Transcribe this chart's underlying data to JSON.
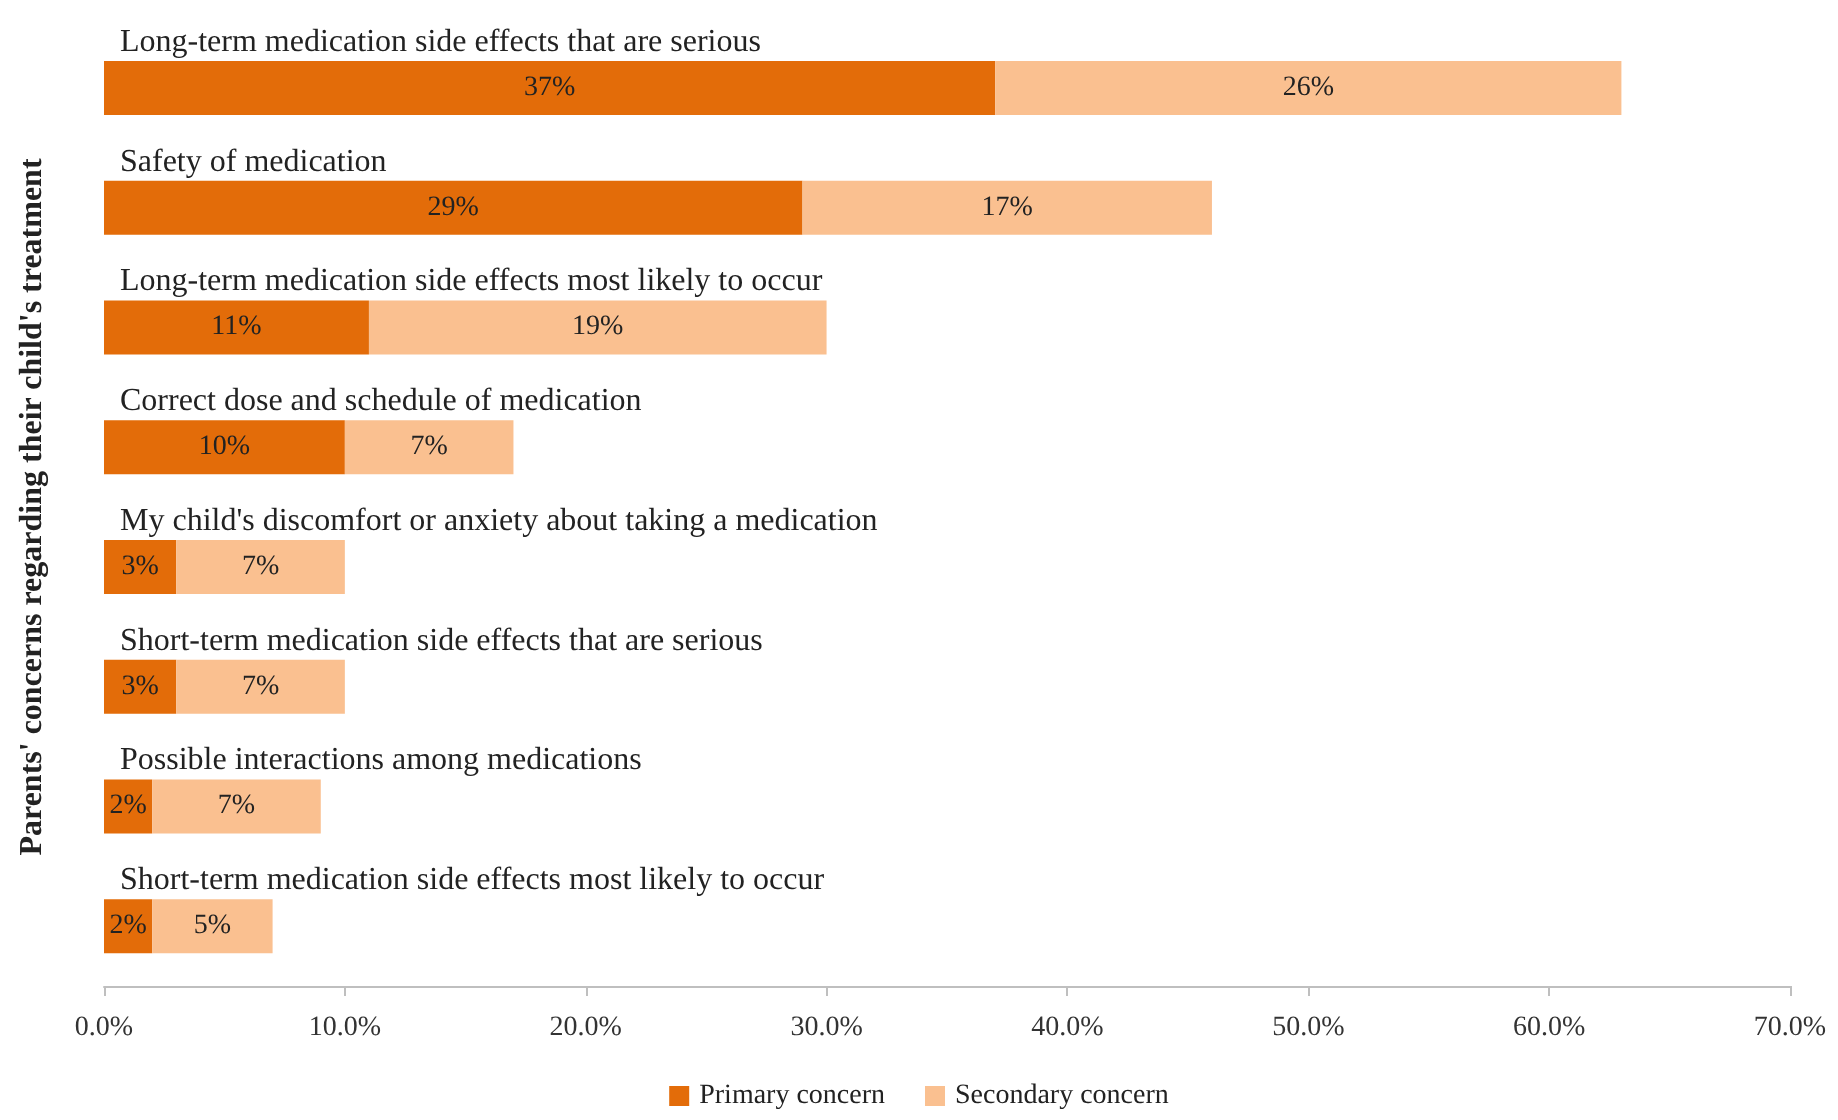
{
  "chart_data": {
    "type": "bar",
    "orientation": "horizontal",
    "stacked": true,
    "ylabel": "Parents' concerns regarding their child's treatment",
    "categories": [
      "Long-term medication side effects that are serious",
      "Safety of medication",
      "Long-term medication side effects most likely to occur",
      "Correct dose and schedule of medication",
      "My child's discomfort or anxiety about taking a medication",
      "Short-term medication side effects that are serious",
      "Possible interactions among medications",
      "Short-term medication side effects most likely to occur"
    ],
    "series": [
      {
        "name": "Primary concern",
        "color": "#e36c09",
        "values": [
          37,
          29,
          11,
          10,
          3,
          3,
          2,
          2
        ],
        "value_labels": [
          "37%",
          "29%",
          "11%",
          "10%",
          "3%",
          "3%",
          "2%",
          "2%"
        ]
      },
      {
        "name": "Secondary concern",
        "color": "#fac090",
        "values": [
          26,
          17,
          19,
          7,
          7,
          7,
          7,
          5
        ],
        "value_labels": [
          "26%",
          "17%",
          "19%",
          "7%",
          "7%",
          "7%",
          "7%",
          "5%"
        ]
      }
    ],
    "xlim": [
      0,
      70
    ],
    "xticks": [
      {
        "value": 0,
        "label": "0.0%"
      },
      {
        "value": 10,
        "label": "10.0%"
      },
      {
        "value": 20,
        "label": "20.0%"
      },
      {
        "value": 30,
        "label": "30.0%"
      },
      {
        "value": 40,
        "label": "40.0%"
      },
      {
        "value": 50,
        "label": "50.0%"
      },
      {
        "value": 60,
        "label": "60.0%"
      },
      {
        "value": 70,
        "label": "70.0%"
      }
    ],
    "grid": false,
    "legend": "bottom"
  }
}
